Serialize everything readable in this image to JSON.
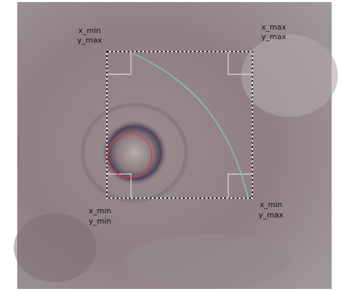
{
  "labels": [
    {
      "lines": [
        "x_min",
        "y_max"
      ]
    },
    {
      "lines": [
        "x_max",
        "y_max"
      ]
    },
    {
      "lines": [
        "x_min",
        "y_min"
      ]
    },
    {
      "lines": [
        "x_min",
        "y_max"
      ]
    }
  ]
}
